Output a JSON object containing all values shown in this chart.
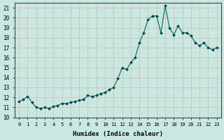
{
  "x_data": [
    0,
    0.5,
    1,
    1.5,
    2,
    2.5,
    3,
    3.5,
    4,
    4.5,
    5,
    5.5,
    6,
    6.5,
    7,
    7.5,
    8,
    8.5,
    9,
    9.5,
    10,
    10.5,
    11,
    11.5,
    12,
    12.5,
    13,
    13.5,
    14,
    14.5,
    15,
    15.5,
    16,
    16.5,
    17,
    17.5,
    18,
    18.5,
    19,
    19.5,
    20,
    20.5,
    21,
    21.5,
    22,
    22.5,
    23
  ],
  "y_data": [
    11.6,
    11.8,
    12.1,
    11.5,
    11.0,
    10.9,
    11.0,
    10.9,
    11.1,
    11.2,
    11.4,
    11.4,
    11.5,
    11.6,
    11.7,
    11.8,
    12.2,
    12.1,
    12.2,
    12.4,
    12.5,
    12.8,
    13.0,
    13.9,
    15.0,
    14.8,
    15.5,
    16.0,
    17.5,
    18.5,
    19.8,
    20.2,
    20.2,
    18.5,
    21.2,
    19.0,
    18.3,
    19.2,
    18.5,
    18.5,
    18.2,
    17.5,
    17.2,
    17.5,
    17.0,
    16.8,
    17.0
  ],
  "xlabel": "Humidex (Indice chaleur)",
  "ylim": [
    10,
    21.5
  ],
  "xlim": [
    -0.5,
    23.5
  ],
  "bg_color": "#c8e8e0",
  "grid_color": "#d4b8b8",
  "line_color": "#006666",
  "marker_color": "#004444",
  "xticks": [
    0,
    1,
    2,
    3,
    4,
    5,
    6,
    7,
    8,
    9,
    10,
    11,
    12,
    13,
    14,
    15,
    16,
    17,
    18,
    19,
    20,
    21,
    22,
    23
  ],
  "yticks": [
    10,
    11,
    12,
    13,
    14,
    15,
    16,
    17,
    18,
    19,
    20,
    21
  ]
}
